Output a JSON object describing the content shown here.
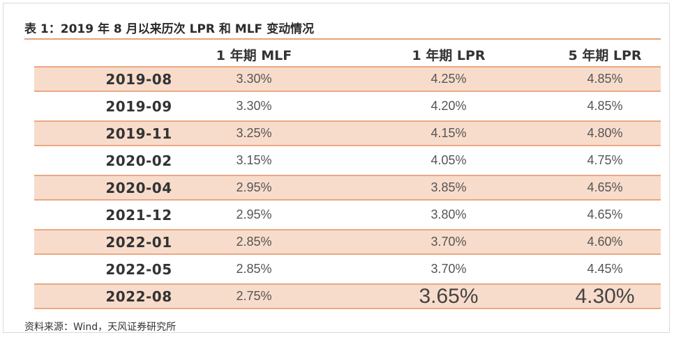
{
  "title": "表 1：2019 年 8 月以来历次 LPR 和 MLF 变动情况",
  "columns": [
    "",
    "1 年期 MLF",
    "1 年期 LPR",
    "5 年期 LPR"
  ],
  "rows": [
    {
      "date": "2019-08",
      "mlf": "3.30%",
      "lpr1": "4.25%",
      "lpr5": "4.85%",
      "shaded": true
    },
    {
      "date": "2019-09",
      "mlf": "3.30%",
      "lpr1": "4.20%",
      "lpr5": "4.85%",
      "shaded": false
    },
    {
      "date": "2019-11",
      "mlf": "3.25%",
      "lpr1": "4.15%",
      "lpr5": "4.80%",
      "shaded": true
    },
    {
      "date": "2020-02",
      "mlf": "3.15%",
      "lpr1": "4.05%",
      "lpr5": "4.75%",
      "shaded": false
    },
    {
      "date": "2020-04",
      "mlf": "2.95%",
      "lpr1": "3.85%",
      "lpr5": "4.65%",
      "shaded": true
    },
    {
      "date": "2021-12",
      "mlf": "2.95%",
      "lpr1": "3.80%",
      "lpr5": "4.65%",
      "shaded": false
    },
    {
      "date": "2022-01",
      "mlf": "2.85%",
      "lpr1": "3.70%",
      "lpr5": "4.60%",
      "shaded": true
    },
    {
      "date": "2022-05",
      "mlf": "2.85%",
      "lpr1": "3.70%",
      "lpr5": "4.45%",
      "shaded": false
    },
    {
      "date": "2022-08",
      "mlf": "2.75%",
      "lpr1": "3.65%",
      "lpr5": "4.30%",
      "shaded": true,
      "emphasized": true
    }
  ],
  "source": "资料来源：Wind，天风证券研究所",
  "colors": {
    "row_fill": "#f8dccb",
    "rule": "#eaa882"
  }
}
